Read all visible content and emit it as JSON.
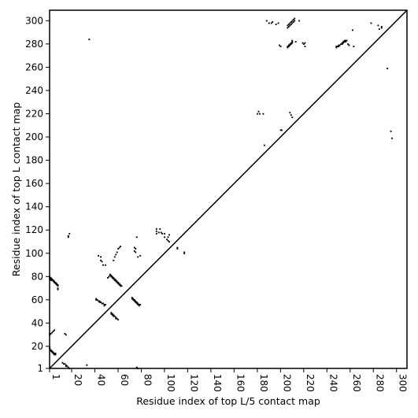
{
  "chart_data": {
    "type": "heatmap",
    "xlabel": "Residue index of top L/5 contact map",
    "ylabel": "Residue index of top L contact map",
    "xlim": [
      1,
      309
    ],
    "ylim": [
      1,
      309
    ],
    "x_ticks": [
      1,
      20,
      40,
      60,
      80,
      100,
      120,
      140,
      160,
      180,
      200,
      220,
      240,
      260,
      280,
      300
    ],
    "y_ticks": [
      1,
      20,
      40,
      60,
      80,
      100,
      120,
      140,
      160,
      180,
      200,
      220,
      240,
      260,
      280,
      300
    ],
    "x_tick_labels": [
      "1",
      "20",
      "40",
      "60",
      "80",
      "100",
      "120",
      "140",
      "160",
      "180",
      "200",
      "220",
      "240",
      "260",
      "280",
      "300"
    ],
    "y_tick_labels": [
      "1",
      "20",
      "40",
      "60",
      "80",
      "100",
      "120",
      "140",
      "160",
      "180",
      "200",
      "220",
      "240",
      "260",
      "280",
      "300"
    ],
    "diagonal": true,
    "grid": false,
    "mark_color": "#000000",
    "contacts": [
      [
        1,
        80
      ],
      [
        1,
        79
      ],
      [
        1,
        78
      ],
      [
        2,
        79
      ],
      [
        2,
        78
      ],
      [
        2,
        77
      ],
      [
        3,
        78
      ],
      [
        3,
        77
      ],
      [
        4,
        77
      ],
      [
        4,
        76
      ],
      [
        5,
        76
      ],
      [
        5,
        75
      ],
      [
        6,
        75
      ],
      [
        6,
        74
      ],
      [
        7,
        74
      ],
      [
        7,
        73
      ],
      [
        8,
        73
      ],
      [
        8,
        72
      ],
      [
        8,
        70
      ],
      [
        8,
        69
      ],
      [
        1,
        31
      ],
      [
        1,
        30
      ],
      [
        2,
        31
      ],
      [
        3,
        32
      ],
      [
        4,
        33
      ],
      [
        5,
        34
      ],
      [
        1,
        19
      ],
      [
        1,
        18
      ],
      [
        2,
        17
      ],
      [
        2,
        16
      ],
      [
        3,
        16
      ],
      [
        3,
        15
      ],
      [
        4,
        15
      ],
      [
        4,
        14
      ],
      [
        5,
        14
      ],
      [
        5,
        13
      ],
      [
        6,
        13
      ],
      [
        6,
        14
      ],
      [
        12,
        6
      ],
      [
        13,
        5
      ],
      [
        14,
        5
      ],
      [
        15,
        4
      ],
      [
        15,
        3
      ],
      [
        16,
        3
      ],
      [
        17,
        2
      ],
      [
        18,
        1
      ],
      [
        33,
        4
      ],
      [
        17,
        114
      ],
      [
        17,
        115
      ],
      [
        18,
        117
      ],
      [
        35,
        284
      ],
      [
        14,
        31
      ],
      [
        15,
        30
      ],
      [
        41,
        61
      ],
      [
        41,
        60
      ],
      [
        42,
        60
      ],
      [
        43,
        59
      ],
      [
        44,
        59
      ],
      [
        44,
        58
      ],
      [
        45,
        58
      ],
      [
        46,
        57
      ],
      [
        47,
        57
      ],
      [
        48,
        56
      ],
      [
        48,
        55
      ],
      [
        49,
        56
      ],
      [
        43,
        98
      ],
      [
        45,
        97
      ],
      [
        45,
        94
      ],
      [
        46,
        93
      ],
      [
        47,
        90
      ],
      [
        49,
        90
      ],
      [
        51,
        79
      ],
      [
        52,
        80
      ],
      [
        53,
        82
      ],
      [
        53,
        81
      ],
      [
        54,
        81
      ],
      [
        54,
        80
      ],
      [
        55,
        80
      ],
      [
        55,
        79
      ],
      [
        56,
        79
      ],
      [
        56,
        78
      ],
      [
        57,
        78
      ],
      [
        57,
        77
      ],
      [
        58,
        77
      ],
      [
        58,
        76
      ],
      [
        59,
        76
      ],
      [
        59,
        75
      ],
      [
        60,
        75
      ],
      [
        60,
        74
      ],
      [
        61,
        74
      ],
      [
        61,
        73
      ],
      [
        62,
        73
      ],
      [
        62,
        72
      ],
      [
        63,
        72
      ],
      [
        54,
        49
      ],
      [
        54,
        48
      ],
      [
        55,
        48
      ],
      [
        55,
        47
      ],
      [
        56,
        47
      ],
      [
        56,
        46
      ],
      [
        57,
        46
      ],
      [
        58,
        45
      ],
      [
        58,
        44
      ],
      [
        59,
        44
      ],
      [
        60,
        43
      ],
      [
        56,
        94
      ],
      [
        57,
        97
      ],
      [
        58,
        99
      ],
      [
        59,
        101
      ],
      [
        60,
        104
      ],
      [
        61,
        105
      ],
      [
        62,
        106
      ],
      [
        72,
        62
      ],
      [
        72,
        61
      ],
      [
        73,
        61
      ],
      [
        73,
        60
      ],
      [
        74,
        60
      ],
      [
        74,
        59
      ],
      [
        75,
        59
      ],
      [
        75,
        58
      ],
      [
        76,
        58
      ],
      [
        76,
        57
      ],
      [
        77,
        57
      ],
      [
        77,
        56
      ],
      [
        78,
        56
      ],
      [
        78,
        55
      ],
      [
        79,
        56
      ],
      [
        74,
        102
      ],
      [
        74,
        105
      ],
      [
        75,
        104
      ],
      [
        75,
        101
      ],
      [
        76,
        114
      ],
      [
        77,
        97
      ],
      [
        79,
        98
      ],
      [
        76,
        2
      ],
      [
        77,
        1
      ],
      [
        93,
        117
      ],
      [
        93,
        119
      ],
      [
        93,
        121
      ],
      [
        95,
        118
      ],
      [
        96,
        121
      ],
      [
        97,
        118
      ],
      [
        98,
        117
      ],
      [
        100,
        114
      ],
      [
        100,
        117
      ],
      [
        102,
        112
      ],
      [
        103,
        114
      ],
      [
        103,
        111
      ],
      [
        104,
        116
      ],
      [
        104,
        110
      ],
      [
        111,
        104
      ],
      [
        111,
        105
      ],
      [
        117,
        101
      ],
      [
        117,
        100
      ],
      [
        180,
        220
      ],
      [
        181,
        222
      ],
      [
        182,
        220
      ],
      [
        185,
        220
      ],
      [
        186,
        193
      ],
      [
        188,
        300
      ],
      [
        190,
        298
      ],
      [
        192,
        298
      ],
      [
        193,
        299
      ],
      [
        196,
        297
      ],
      [
        198,
        298
      ],
      [
        199,
        279
      ],
      [
        200,
        278
      ],
      [
        200,
        206
      ],
      [
        201,
        206
      ],
      [
        206,
        294
      ],
      [
        206,
        296
      ],
      [
        207,
        295
      ],
      [
        207,
        297
      ],
      [
        208,
        296
      ],
      [
        208,
        298
      ],
      [
        209,
        297
      ],
      [
        209,
        299
      ],
      [
        210,
        298
      ],
      [
        210,
        300
      ],
      [
        211,
        299
      ],
      [
        211,
        301
      ],
      [
        212,
        300
      ],
      [
        212,
        302
      ],
      [
        206,
        277
      ],
      [
        206,
        278
      ],
      [
        207,
        278
      ],
      [
        207,
        279
      ],
      [
        208,
        279
      ],
      [
        208,
        280
      ],
      [
        209,
        280
      ],
      [
        209,
        281
      ],
      [
        210,
        281
      ],
      [
        210,
        282
      ],
      [
        210,
        283
      ],
      [
        208,
        221
      ],
      [
        209,
        219
      ],
      [
        210,
        217
      ],
      [
        213,
        282
      ],
      [
        216,
        300
      ],
      [
        219,
        281
      ],
      [
        220,
        280
      ],
      [
        221,
        278
      ],
      [
        221,
        281
      ],
      [
        248,
        277
      ],
      [
        248,
        278
      ],
      [
        249,
        278
      ],
      [
        250,
        278
      ],
      [
        250,
        279
      ],
      [
        251,
        279
      ],
      [
        252,
        280
      ],
      [
        253,
        280
      ],
      [
        253,
        281
      ],
      [
        254,
        281
      ],
      [
        254,
        282
      ],
      [
        255,
        282
      ],
      [
        255,
        283
      ],
      [
        256,
        282
      ],
      [
        256,
        283
      ],
      [
        257,
        283
      ],
      [
        258,
        280
      ],
      [
        259,
        279
      ],
      [
        262,
        292
      ],
      [
        263,
        278
      ],
      [
        278,
        298
      ],
      [
        284,
        296
      ],
      [
        285,
        293
      ],
      [
        287,
        294
      ],
      [
        287,
        295
      ],
      [
        292,
        259
      ],
      [
        295,
        205
      ],
      [
        296,
        199
      ]
    ]
  }
}
